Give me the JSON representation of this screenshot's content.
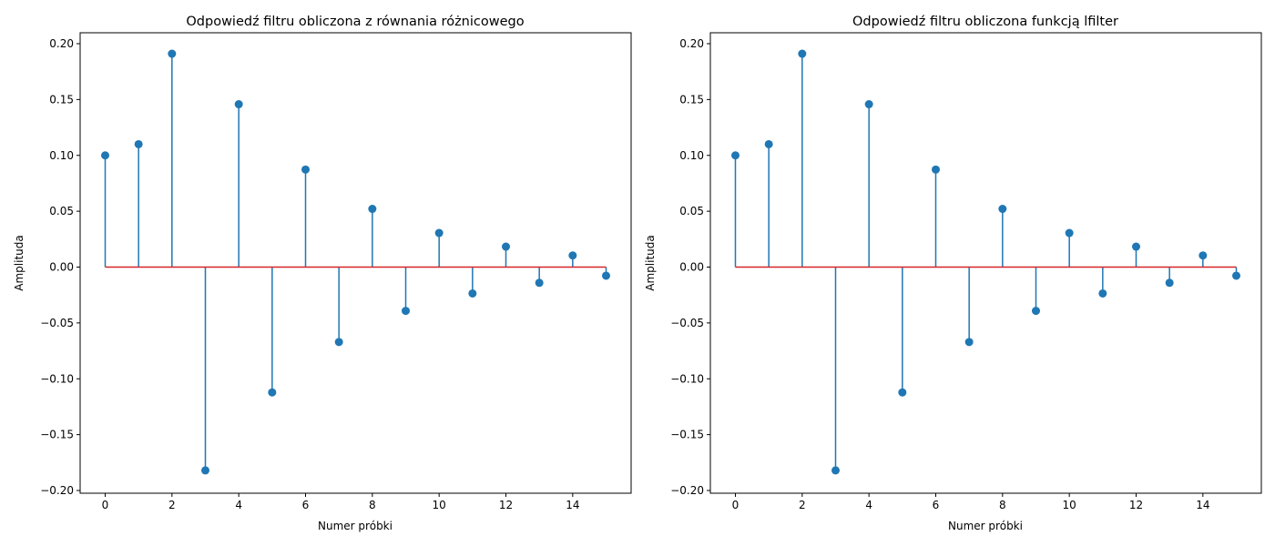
{
  "chart_data": [
    {
      "type": "stem",
      "title": "Odpowiedź filtru obliczona z równania różnicowego",
      "xlabel": "Numer próbki",
      "ylabel": "Amplituda",
      "x": [
        0,
        1,
        2,
        3,
        4,
        5,
        6,
        7,
        8,
        9,
        10,
        11,
        12,
        13,
        14,
        15
      ],
      "values": [
        0.1,
        0.11,
        0.191,
        -0.182,
        0.1458,
        -0.1122,
        0.0873,
        -0.0671,
        0.0521,
        -0.0392,
        0.0305,
        -0.0236,
        0.0183,
        -0.0141,
        0.0104,
        -0.0077
      ],
      "xlim": [
        -0.75,
        15.75
      ],
      "ylim": [
        -0.2,
        0.2
      ],
      "xticks": [
        0,
        2,
        4,
        6,
        8,
        10,
        12,
        14
      ],
      "yticks": [
        -0.2,
        -0.15,
        -0.1,
        -0.05,
        0.0,
        0.05,
        0.1,
        0.15,
        0.2
      ],
      "xtick_labels": [
        "0",
        "2",
        "4",
        "6",
        "8",
        "10",
        "12",
        "14"
      ],
      "ytick_labels": [
        "−0.20",
        "−0.15",
        "−0.10",
        "−0.05",
        "0.00",
        "0.05",
        "0.10",
        "0.15",
        "0.20"
      ],
      "grid": false,
      "stem_color": "#1f77b4",
      "baseline_color": "#d62728"
    },
    {
      "type": "stem",
      "title": "Odpowiedź filtru obliczona funkcją lfilter",
      "xlabel": "Numer próbki",
      "ylabel": "Amplituda",
      "x": [
        0,
        1,
        2,
        3,
        4,
        5,
        6,
        7,
        8,
        9,
        10,
        11,
        12,
        13,
        14,
        15
      ],
      "values": [
        0.1,
        0.11,
        0.191,
        -0.182,
        0.1458,
        -0.1122,
        0.0873,
        -0.0671,
        0.0521,
        -0.0392,
        0.0305,
        -0.0236,
        0.0183,
        -0.0141,
        0.0104,
        -0.0077
      ],
      "xlim": [
        -0.75,
        15.75
      ],
      "ylim": [
        -0.2,
        0.2
      ],
      "xticks": [
        0,
        2,
        4,
        6,
        8,
        10,
        12,
        14
      ],
      "yticks": [
        -0.2,
        -0.15,
        -0.1,
        -0.05,
        0.0,
        0.05,
        0.1,
        0.15,
        0.2
      ],
      "xtick_labels": [
        "0",
        "2",
        "4",
        "6",
        "8",
        "10",
        "12",
        "14"
      ],
      "ytick_labels": [
        "−0.20",
        "−0.15",
        "−0.10",
        "−0.05",
        "0.00",
        "0.05",
        "0.10",
        "0.15",
        "0.20"
      ],
      "grid": false,
      "stem_color": "#1f77b4",
      "baseline_color": "#d62728"
    }
  ]
}
